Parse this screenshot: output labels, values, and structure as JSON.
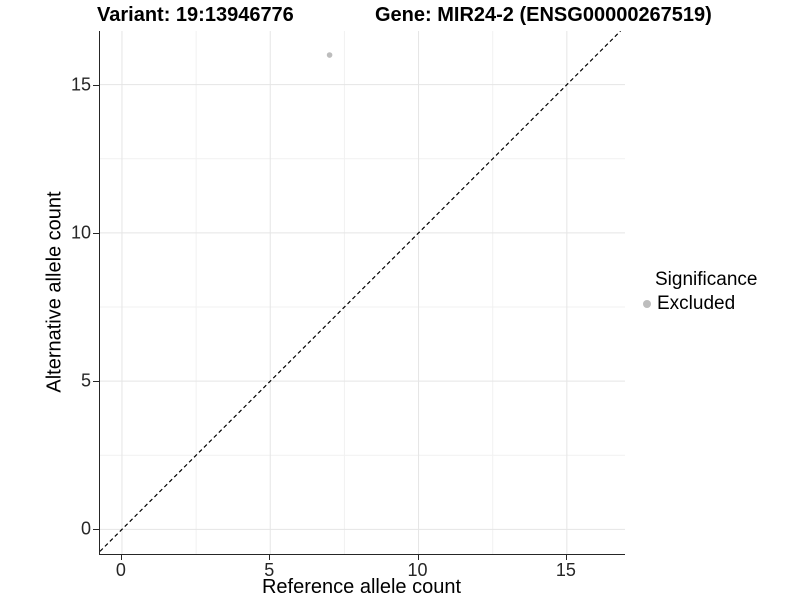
{
  "chart_data": {
    "type": "scatter",
    "title_left": "Variant: 19:13946776",
    "title_right": "Gene: MIR24-2 (ENSG00000267519)",
    "xlabel": "Reference allele count",
    "ylabel": "Alternative allele count",
    "xlim": [
      -0.74,
      16.96
    ],
    "ylim": [
      -0.83,
      16.81
    ],
    "x_major_ticks": [
      0,
      5,
      10,
      15
    ],
    "y_major_ticks": [
      0,
      5,
      10,
      15
    ],
    "x_minor_ticks": [
      2.5,
      7.5,
      12.5
    ],
    "y_minor_ticks": [
      2.5,
      7.5,
      12.5
    ],
    "grid": true,
    "points": [
      {
        "x": 7,
        "y": 16,
        "series": "Excluded"
      }
    ],
    "reference_line": {
      "type": "identity",
      "slope": 1,
      "intercept": 0,
      "style": "dashed",
      "color": "#000000"
    },
    "legend": {
      "title": "Significance",
      "position": "right",
      "items": [
        {
          "label": "Excluded",
          "color": "#bdbdbd",
          "marker": "circle"
        }
      ]
    },
    "colors": {
      "point": "#bdbdbd",
      "grid_major": "#e5e5e5",
      "grid_minor": "#f1f1f1",
      "axis_line": "#262626",
      "text": "#000000"
    }
  }
}
